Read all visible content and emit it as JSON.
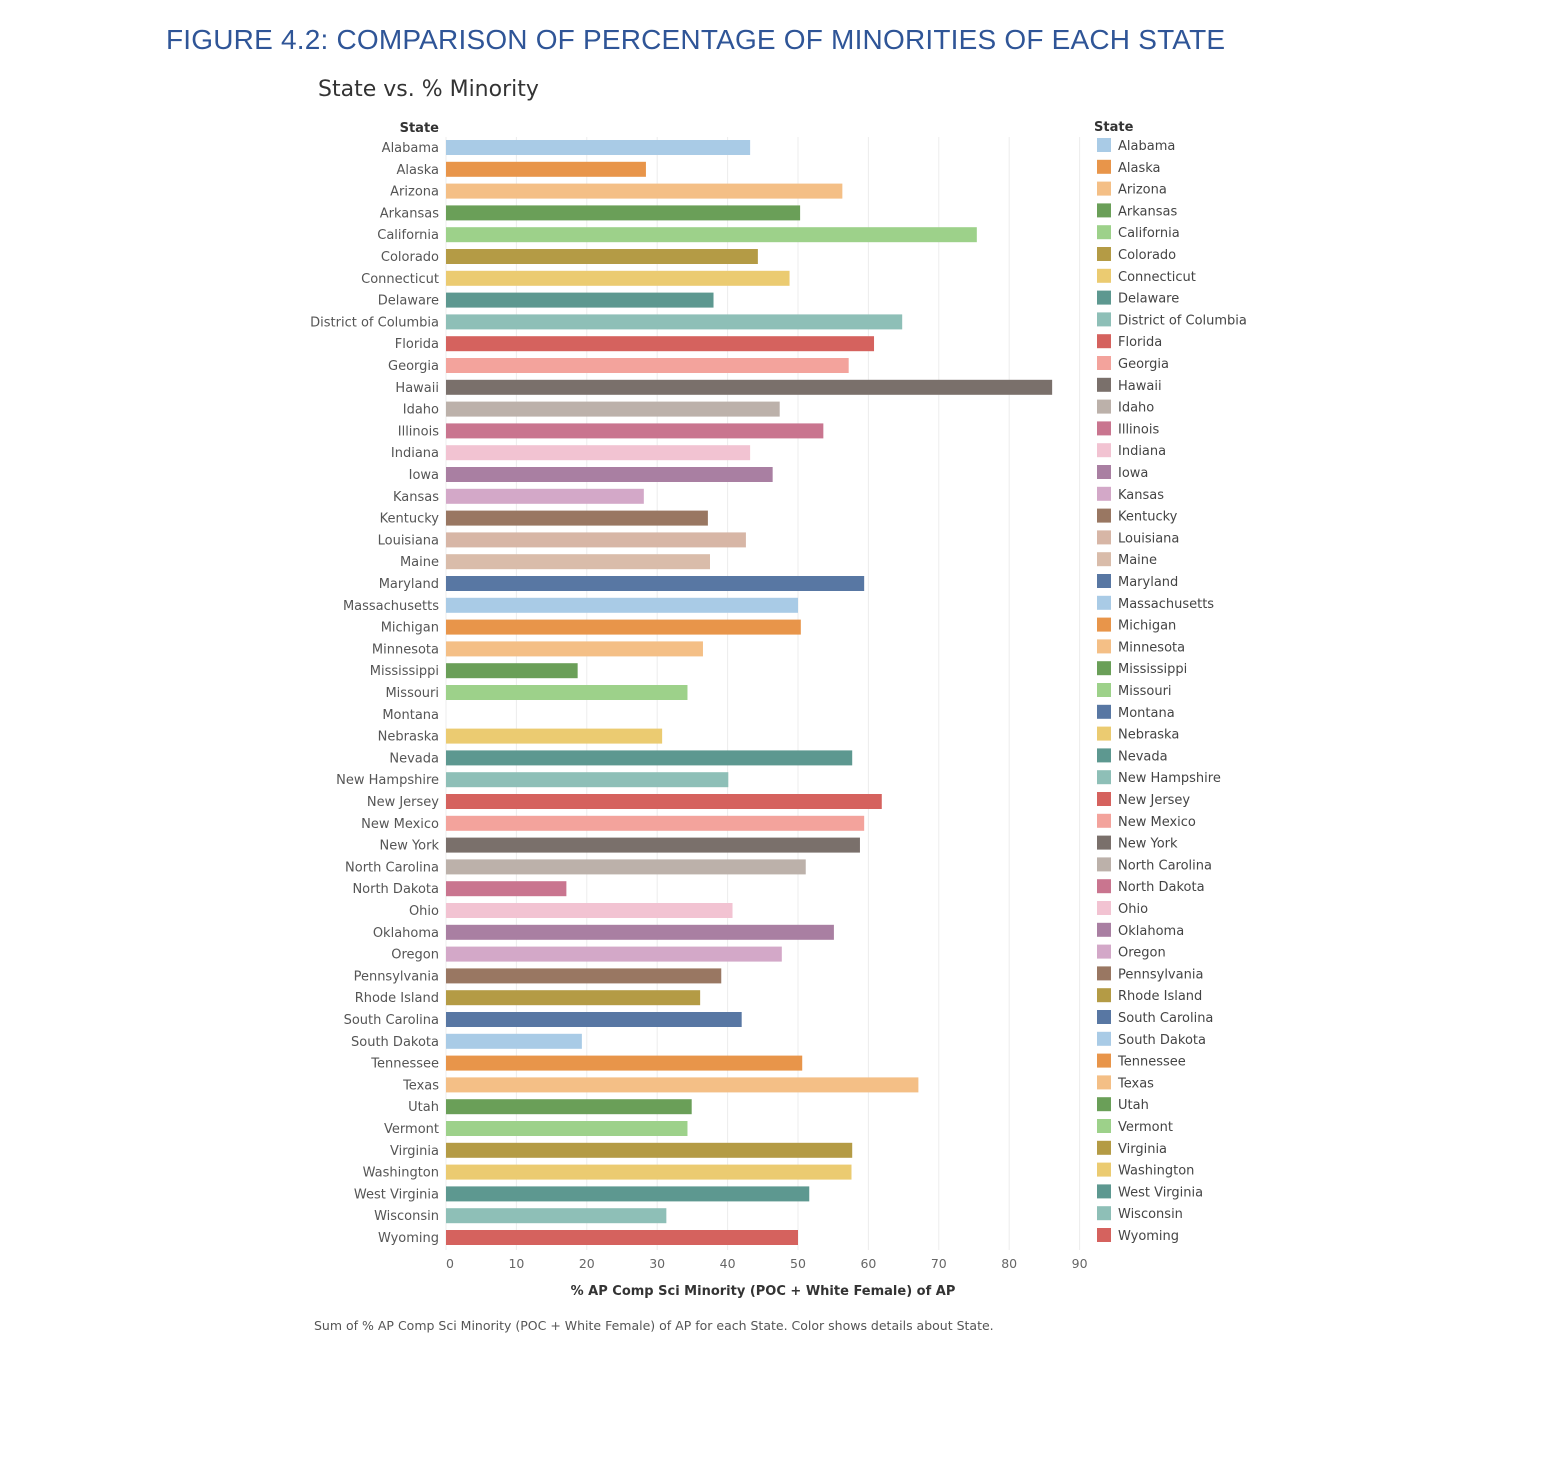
{
  "figure_title": "FIGURE 4.2: COMPARISON OF PERCENTAGE OF MINORITIES OF EACH STATE",
  "caption": "Sum of % AP Comp Sci Minority (POC + White Female) of AP for each State.  Color shows details about State.",
  "chart_data": {
    "type": "bar",
    "orientation": "horizontal",
    "title": "State vs. % Minority",
    "ylabel": "State",
    "xlabel": "% AP Comp Sci Minority (POC + White Female) of AP",
    "xlim": [
      0,
      90
    ],
    "xticks": [
      0,
      10,
      20,
      30,
      40,
      50,
      60,
      70,
      80,
      90
    ],
    "grid": true,
    "legend": {
      "title": "State",
      "position": "right"
    },
    "categories": [
      "Alabama",
      "Alaska",
      "Arizona",
      "Arkansas",
      "California",
      "Colorado",
      "Connecticut",
      "Delaware",
      "District of Columbia",
      "Florida",
      "Georgia",
      "Hawaii",
      "Idaho",
      "Illinois",
      "Indiana",
      "Iowa",
      "Kansas",
      "Kentucky",
      "Louisiana",
      "Maine",
      "Maryland",
      "Massachusetts",
      "Michigan",
      "Minnesota",
      "Mississippi",
      "Missouri",
      "Montana",
      "Nebraska",
      "Nevada",
      "New Hampshire",
      "New Jersey",
      "New Mexico",
      "New York",
      "North Carolina",
      "North Dakota",
      "Ohio",
      "Oklahoma",
      "Oregon",
      "Pennsylvania",
      "Rhode Island",
      "South Carolina",
      "South Dakota",
      "Tennessee",
      "Texas",
      "Utah",
      "Vermont",
      "Virginia",
      "Washington",
      "West Virginia",
      "Wisconsin",
      "Wyoming"
    ],
    "values": [
      43.2,
      28.4,
      56.3,
      50.3,
      75.4,
      44.3,
      48.8,
      38.0,
      64.8,
      60.8,
      57.2,
      86.1,
      47.4,
      53.6,
      43.2,
      46.4,
      28.1,
      37.2,
      42.6,
      37.5,
      59.4,
      50.0,
      50.4,
      36.5,
      18.7,
      34.3,
      0,
      30.7,
      57.7,
      40.1,
      61.9,
      59.4,
      58.8,
      51.1,
      17.1,
      40.7,
      55.1,
      47.7,
      39.1,
      36.1,
      42.0,
      19.3,
      50.6,
      67.1,
      34.9,
      34.3,
      57.7,
      57.6,
      51.6,
      31.3,
      50.0
    ],
    "colors": [
      "#a9cbe6",
      "#e8954a",
      "#f4bf86",
      "#6a9f58",
      "#9dd18a",
      "#b49b45",
      "#ebcb71",
      "#5d9890",
      "#8ebfb7",
      "#d5625e",
      "#f3a39c",
      "#7a706b",
      "#bcb1aa",
      "#c9758f",
      "#f2c3d2",
      "#a97fa2",
      "#d3a8c8",
      "#997762",
      "#d7b6a6",
      "#d9bcaa",
      "#5877a3",
      "#a9cbe6",
      "#e8954a",
      "#f4bf86",
      "#6a9f58",
      "#9dd18a",
      "#5877a3",
      "#ebcb71",
      "#5d9890",
      "#8ebfb7",
      "#d5625e",
      "#f3a39c",
      "#7a706b",
      "#bcb1aa",
      "#c9758f",
      "#f2c3d2",
      "#a97fa2",
      "#d3a8c8",
      "#997762",
      "#b49b45",
      "#5877a3",
      "#a9cbe6",
      "#e8954a",
      "#f4bf86",
      "#6a9f58",
      "#9dd18a",
      "#b49b45",
      "#ebcb71",
      "#5d9890",
      "#8ebfb7",
      "#d5625e"
    ]
  }
}
